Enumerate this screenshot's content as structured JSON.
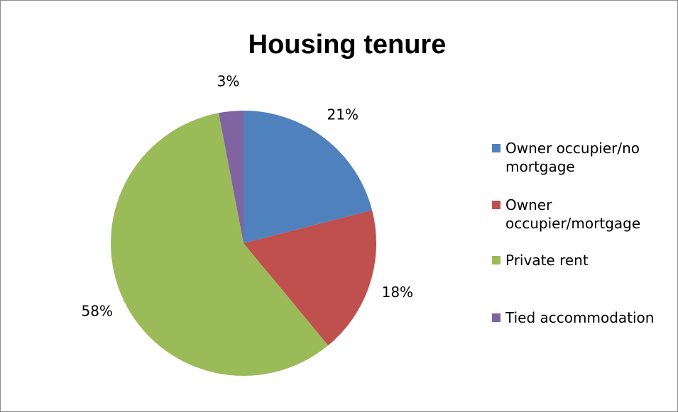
{
  "chart_data": {
    "type": "pie",
    "title": "Housing tenure",
    "categories": [
      "Owner occupier/no mortgage",
      "Owner occupier/mortgage",
      "Private rent",
      "Tied accommodation"
    ],
    "values": [
      21,
      18,
      58,
      3
    ],
    "value_labels": [
      "21%",
      "18%",
      "58%",
      "3%"
    ],
    "colors": [
      "#4f81bd",
      "#c0504d",
      "#9bbb59",
      "#8064a2"
    ],
    "legend": "right"
  }
}
